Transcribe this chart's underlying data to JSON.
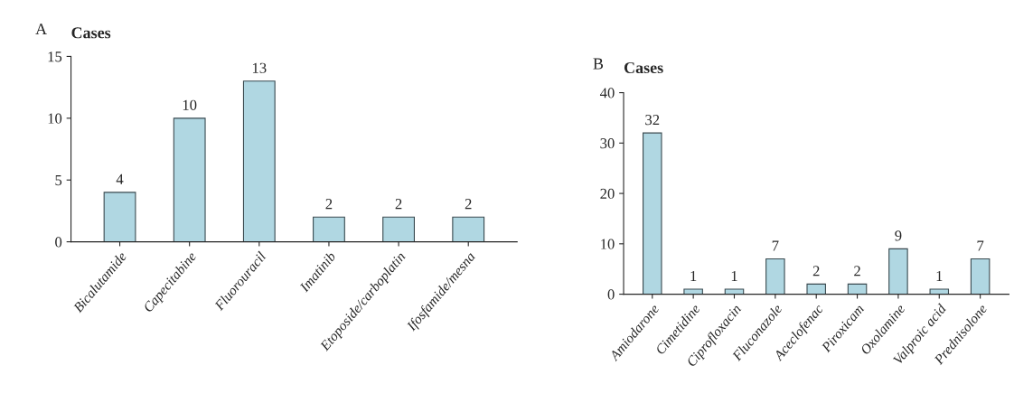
{
  "chart_data": [
    {
      "type": "bar",
      "title": "A",
      "ylabel": "Cases",
      "categories": [
        "Bicalutamide",
        "Capecitabine",
        "Fluorouracil",
        "Imatinib",
        "Etoposide/carboplatin",
        "Ifosfamide/mesna"
      ],
      "values": [
        4,
        10,
        13,
        2,
        2,
        2
      ],
      "color": "#a8dcea",
      "ylim": [
        0,
        15
      ],
      "yticks": [
        0,
        5,
        10,
        15
      ],
      "data_labels": true,
      "grid": false,
      "legend": false
    },
    {
      "type": "bar",
      "title": "B",
      "ylabel": "Cases",
      "categories": [
        "Amiodarone",
        "Cimetidine",
        "Ciprofloxacin",
        "Fluconazole",
        "Aceclofenac",
        "Piroxicam",
        "Oxolamine",
        "Valproic acid",
        "Prednisolone"
      ],
      "values": [
        32,
        1,
        1,
        7,
        2,
        2,
        9,
        1,
        7
      ],
      "color": "#a8dcea",
      "ylim": [
        0,
        40
      ],
      "yticks": [
        0,
        10,
        20,
        30,
        40
      ],
      "data_labels": true,
      "grid": false,
      "legend": false
    }
  ]
}
